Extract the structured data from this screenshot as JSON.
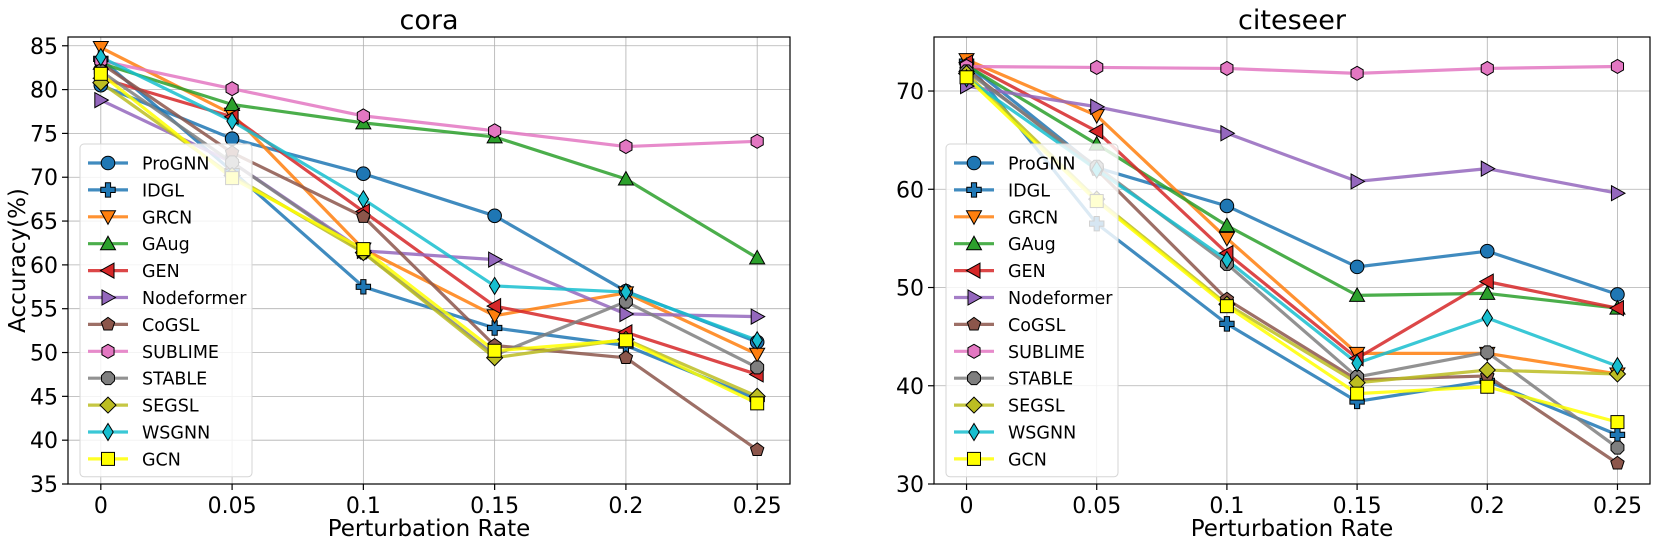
{
  "chart_data": [
    {
      "type": "line",
      "title": "cora",
      "xlabel": "Perturbation Rate",
      "ylabel": "Accuracy(%)",
      "x": [
        0,
        0.05,
        0.1,
        0.15,
        0.2,
        0.25
      ],
      "x_tick_labels": [
        "0",
        "0.05",
        "0.1",
        "0.15",
        "0.2",
        "0.25"
      ],
      "ylim": [
        35,
        86
      ],
      "y_ticks": [
        35,
        40,
        45,
        50,
        55,
        60,
        65,
        70,
        75,
        80,
        85
      ],
      "grid": true,
      "legend_position": "left",
      "series": [
        {
          "name": "ProGNN",
          "values": [
            80.5,
            74.4,
            70.4,
            65.6,
            57.0,
            51.2
          ]
        },
        {
          "name": "IDGL",
          "values": [
            83.5,
            70.7,
            57.5,
            52.8,
            50.8,
            44.7
          ]
        },
        {
          "name": "GRCN",
          "values": [
            84.8,
            77.2,
            61.8,
            54.2,
            56.8,
            49.8
          ]
        },
        {
          "name": "GAug",
          "values": [
            83.0,
            78.3,
            76.2,
            74.6,
            69.8,
            60.8
          ]
        },
        {
          "name": "GEN",
          "values": [
            81.3,
            76.9,
            66.1,
            55.3,
            52.3,
            47.5
          ]
        },
        {
          "name": "Nodeformer",
          "values": [
            78.8,
            71.7,
            61.6,
            60.6,
            54.4,
            54.1
          ]
        },
        {
          "name": "CoGSL",
          "values": [
            83.0,
            72.8,
            65.5,
            50.8,
            49.4,
            38.9
          ]
        },
        {
          "name": "SUBLIME",
          "values": [
            83.3,
            80.1,
            77.0,
            75.3,
            73.5,
            74.1
          ]
        },
        {
          "name": "STABLE",
          "values": [
            82.1,
            71.7,
            61.4,
            49.7,
            55.8,
            48.3
          ]
        },
        {
          "name": "SEGSL",
          "values": [
            80.8,
            70.2,
            61.4,
            49.4,
            51.5,
            45.0
          ]
        },
        {
          "name": "WSGNN",
          "values": [
            83.7,
            76.4,
            67.5,
            57.6,
            56.9,
            51.4
          ]
        },
        {
          "name": "GCN",
          "values": [
            81.8,
            69.9,
            61.8,
            50.2,
            51.4,
            44.2
          ]
        }
      ]
    },
    {
      "type": "line",
      "title": "citeseer",
      "xlabel": "Perturbation Rate",
      "ylabel": "",
      "x": [
        0,
        0.05,
        0.1,
        0.15,
        0.2,
        0.25
      ],
      "x_tick_labels": [
        "0",
        "0.05",
        "0.1",
        "0.15",
        "0.2",
        "0.25"
      ],
      "ylim": [
        30,
        75.5
      ],
      "y_ticks": [
        30,
        40,
        50,
        60,
        70
      ],
      "grid": true,
      "legend_position": "left",
      "series": [
        {
          "name": "ProGNN",
          "values": [
            72.8,
            62.2,
            58.3,
            52.1,
            53.7,
            49.3
          ]
        },
        {
          "name": "IDGL",
          "values": [
            73.0,
            56.5,
            46.3,
            38.4,
            40.5,
            35.0
          ]
        },
        {
          "name": "GRCN",
          "values": [
            73.2,
            67.5,
            55.0,
            43.3,
            43.3,
            41.2
          ]
        },
        {
          "name": "GAug",
          "values": [
            72.6,
            64.6,
            56.3,
            49.2,
            49.4,
            47.9
          ]
        },
        {
          "name": "GEN",
          "values": [
            72.9,
            65.9,
            53.5,
            42.8,
            50.6,
            47.9
          ]
        },
        {
          "name": "Nodeformer",
          "values": [
            70.5,
            68.4,
            65.7,
            60.8,
            62.1,
            59.6
          ]
        },
        {
          "name": "CoGSL",
          "values": [
            72.2,
            62.0,
            48.8,
            40.6,
            41.0,
            32.1
          ]
        },
        {
          "name": "SUBLIME",
          "values": [
            72.5,
            72.4,
            72.3,
            71.8,
            72.3,
            72.5
          ]
        },
        {
          "name": "STABLE",
          "values": [
            72.0,
            62.3,
            52.4,
            40.9,
            43.4,
            33.7
          ]
        },
        {
          "name": "SEGSL",
          "values": [
            71.8,
            59.0,
            48.3,
            40.3,
            41.6,
            41.2
          ]
        },
        {
          "name": "WSGNN",
          "values": [
            71.3,
            62.0,
            52.8,
            42.3,
            46.9,
            42.0
          ]
        },
        {
          "name": "GCN",
          "values": [
            71.4,
            58.8,
            48.1,
            39.2,
            39.9,
            36.3
          ]
        }
      ]
    }
  ],
  "style": {
    "colors": {
      "ProGNN": "#1f77b4",
      "IDGL": "#1f77b4",
      "GRCN": "#ff7f0e",
      "GAug": "#2ca02c",
      "GEN": "#d62728",
      "Nodeformer": "#9467bd",
      "CoGSL": "#8c564b",
      "SUBLIME": "#e377c2",
      "STABLE": "#7f7f7f",
      "SEGSL": "#bcbd22",
      "WSGNN": "#17becf",
      "GCN": "#ffff00"
    },
    "markers": {
      "ProGNN": "circle",
      "IDGL": "plus",
      "GRCN": "triangle-down",
      "GAug": "triangle-up",
      "GEN": "triangle-left",
      "Nodeformer": "triangle-right",
      "CoGSL": "pentagon",
      "SUBLIME": "hexagon",
      "STABLE": "octagon",
      "SEGSL": "diamond",
      "WSGNN": "thin-diamond",
      "GCN": "square"
    }
  }
}
